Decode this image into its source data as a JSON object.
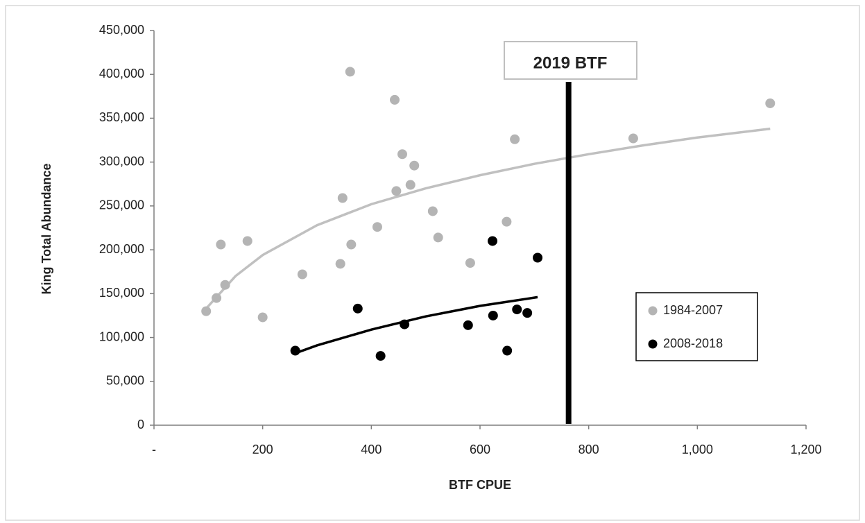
{
  "chart_data": {
    "type": "scatter",
    "x_label": "BTF CPUE",
    "y_label": "King Total Abundance",
    "xlim": [
      0,
      1200
    ],
    "xticks": [
      {
        "value": 0,
        "label": "-"
      },
      200,
      400,
      600,
      800,
      {
        "value": 1000,
        "label": "1,000"
      },
      {
        "value": 1200,
        "label": "1,200"
      }
    ],
    "ylim": [
      0,
      450000
    ],
    "yticks": [
      0,
      {
        "value": 50000,
        "label": "50,000"
      },
      {
        "value": 100000,
        "label": "100,000"
      },
      {
        "value": 150000,
        "label": "150,000"
      },
      {
        "value": 200000,
        "label": "200,000"
      },
      {
        "value": 250000,
        "label": "250,000"
      },
      {
        "value": 300000,
        "label": "300,000"
      },
      {
        "value": 350000,
        "label": "350,000"
      },
      {
        "value": 400000,
        "label": "400,000"
      },
      {
        "value": 450000,
        "label": "450,000"
      }
    ],
    "grid": false,
    "legend_position": "right",
    "series": [
      {
        "name": "1984-2007",
        "color": "#b4b4b4",
        "x": [
          96,
          115,
          123,
          131,
          172,
          200,
          273,
          343,
          347,
          361,
          363,
          411,
          443,
          446,
          457,
          472,
          479,
          513,
          523,
          582,
          649,
          664,
          882,
          1134
        ],
        "values": [
          130000,
          145000,
          206000,
          160000,
          210000,
          123000,
          172000,
          184000,
          259000,
          403000,
          206000,
          226000,
          371000,
          267000,
          309000,
          274000,
          296000,
          244000,
          214000,
          185000,
          232000,
          326000,
          327000,
          367000
        ]
      },
      {
        "name": "2008-2018",
        "color": "#000000",
        "x": [
          260,
          375,
          417,
          461,
          578,
          623,
          624,
          650,
          668,
          687,
          706
        ],
        "values": [
          85000,
          133000,
          79000,
          115000,
          114000,
          210000,
          125000,
          85000,
          132000,
          128000,
          191000
        ]
      }
    ],
    "trendlines": [
      {
        "color": "#c0c0c0",
        "x": [
          96,
          150,
          200,
          300,
          400,
          500,
          600,
          700,
          800,
          900,
          1000,
          1134
        ],
        "values": [
          133000,
          170000,
          194000,
          228000,
          252000,
          270000,
          285000,
          298000,
          309000,
          319000,
          328000,
          338000
        ]
      },
      {
        "color": "#000000",
        "x": [
          260,
          300,
          400,
          500,
          600,
          706
        ],
        "values": [
          82000,
          91000,
          109000,
          124000,
          136000,
          146000
        ]
      }
    ],
    "reference_line": {
      "x": 763,
      "label": "2019 BTF",
      "color": "#000000"
    }
  }
}
